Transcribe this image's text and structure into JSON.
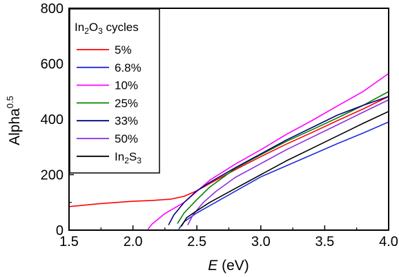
{
  "chart_data": {
    "type": "line",
    "xlabel": {
      "italic": "E",
      "rest": " (eV)"
    },
    "ylabel": {
      "base": "Alpha",
      "sup": "0.5"
    },
    "xlim": [
      1.5,
      4.0
    ],
    "ylim": [
      0,
      800
    ],
    "xticks": [
      "1.5",
      "2.0",
      "2.5",
      "3.0",
      "3.5",
      "4.0"
    ],
    "yticks": [
      "0",
      "200",
      "400",
      "600",
      "800"
    ],
    "grid": false,
    "legend": {
      "title": {
        "pre": "In",
        "sub1": "2",
        "mid": "O",
        "sub2": "3",
        "post": " cycles"
      },
      "placement": "top-left"
    },
    "series": [
      {
        "name": "5%",
        "color": "#ff0000",
        "x": [
          1.5,
          1.75,
          2.0,
          2.15,
          2.3,
          2.4,
          2.5,
          2.6,
          2.8,
          3.0,
          3.2,
          3.4,
          3.6,
          3.8,
          4.0
        ],
        "y": [
          85,
          96,
          104,
          107,
          112,
          122,
          142,
          168,
          218,
          265,
          310,
          352,
          395,
          437,
          482
        ]
      },
      {
        "name": "6.8%",
        "color": "#1f2bd8",
        "x": [
          2.36,
          2.4,
          2.5,
          2.6,
          2.8,
          3.0,
          3.2,
          3.4,
          3.6,
          3.8,
          4.0
        ],
        "y": [
          5,
          30,
          62,
          88,
          140,
          192,
          232,
          272,
          312,
          350,
          390
        ]
      },
      {
        "name": "10%",
        "color": "#ff00ff",
        "x": [
          2.12,
          2.15,
          2.25,
          2.4,
          2.6,
          2.8,
          3.0,
          3.2,
          3.4,
          3.6,
          3.8,
          4.0
        ],
        "y": [
          5,
          22,
          60,
          100,
          180,
          238,
          290,
          345,
          395,
          448,
          500,
          565
        ]
      },
      {
        "name": "25%",
        "color": "#008000",
        "x": [
          2.35,
          2.4,
          2.5,
          2.6,
          2.8,
          3.0,
          3.2,
          3.4,
          3.6,
          3.8,
          4.0
        ],
        "y": [
          25,
          62,
          110,
          155,
          222,
          272,
          320,
          362,
          405,
          450,
          500
        ]
      },
      {
        "name": "33%",
        "color": "#000080",
        "x": [
          2.28,
          2.32,
          2.4,
          2.5,
          2.6,
          2.8,
          3.0,
          3.2,
          3.4,
          3.6,
          3.8,
          4.0
        ],
        "y": [
          20,
          55,
          100,
          142,
          172,
          225,
          275,
          325,
          370,
          415,
          450,
          482
        ]
      },
      {
        "name": "50%",
        "color": "#8a2be2",
        "x": [
          2.43,
          2.47,
          2.55,
          2.65,
          2.8,
          3.0,
          3.2,
          3.4,
          3.6,
          3.8,
          4.0
        ],
        "y": [
          20,
          55,
          100,
          140,
          190,
          240,
          290,
          335,
          380,
          425,
          470
        ]
      },
      {
        "name": {
          "base": "In",
          "sub1": "2",
          "mid": "S",
          "sub2": "3"
        },
        "color": "#000000",
        "x": [
          2.38,
          2.42,
          2.5,
          2.6,
          2.8,
          3.0,
          3.2,
          3.4,
          3.6,
          3.8,
          4.0
        ],
        "y": [
          15,
          45,
          70,
          100,
          150,
          200,
          250,
          295,
          340,
          385,
          428
        ]
      }
    ]
  }
}
